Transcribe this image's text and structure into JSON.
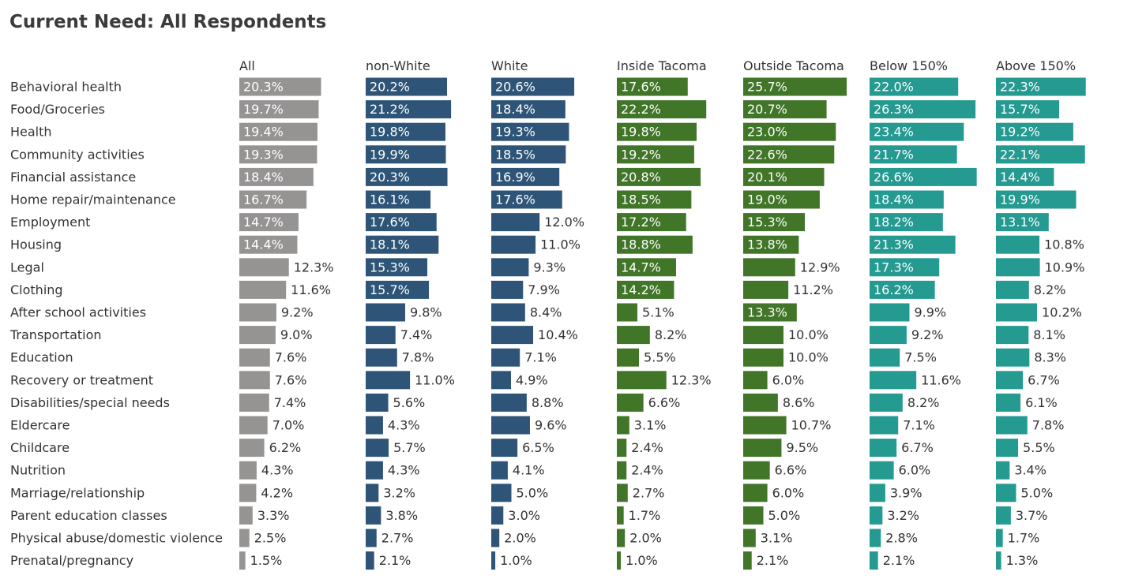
{
  "chart_data": {
    "type": "bar",
    "orientation": "horizontal",
    "title": "Current Need: All Respondents",
    "categories": [
      "Behavioral health",
      "Food/Groceries",
      "Health",
      "Community activities",
      "Financial assistance",
      "Home repair/maintenance",
      "Employment",
      "Housing",
      "Legal",
      "Clothing",
      "After school activities",
      "Transportation",
      "Education",
      "Recovery or treatment",
      "Disabilities/special needs",
      "Eldercare",
      "Childcare",
      "Nutrition",
      "Marriage/relationship",
      "Parent education classes",
      "Physical abuse/domestic violence",
      "Prenatal/pregnancy"
    ],
    "unit": "%",
    "series": [
      {
        "name": "All",
        "color": "#969393",
        "values": [
          20.3,
          19.7,
          19.4,
          19.3,
          18.4,
          16.7,
          14.7,
          14.4,
          12.3,
          11.6,
          9.2,
          9.0,
          7.6,
          7.6,
          7.4,
          7.0,
          6.2,
          4.3,
          4.2,
          3.3,
          2.5,
          1.5
        ]
      },
      {
        "name": "non-White",
        "color": "#2e5577",
        "values": [
          20.2,
          21.2,
          19.8,
          19.9,
          20.3,
          16.1,
          17.6,
          18.1,
          15.3,
          15.7,
          9.8,
          7.4,
          7.8,
          11.0,
          5.6,
          4.3,
          5.7,
          4.3,
          3.2,
          3.8,
          2.7,
          2.1
        ]
      },
      {
        "name": "White",
        "color": "#2e5577",
        "values": [
          20.6,
          18.4,
          19.3,
          18.5,
          16.9,
          17.6,
          12.0,
          11.0,
          9.3,
          7.9,
          8.4,
          10.4,
          7.1,
          4.9,
          8.8,
          9.6,
          6.5,
          4.1,
          5.0,
          3.0,
          2.0,
          1.0
        ]
      },
      {
        "name": "Inside Tacoma",
        "color": "#417528",
        "values": [
          17.6,
          22.2,
          19.8,
          19.2,
          20.8,
          18.5,
          17.2,
          18.8,
          14.7,
          14.2,
          5.1,
          8.2,
          5.5,
          12.3,
          6.6,
          3.1,
          2.4,
          2.4,
          2.7,
          1.7,
          2.0,
          1.0
        ]
      },
      {
        "name": "Outside Tacoma",
        "color": "#417528",
        "values": [
          25.7,
          20.7,
          23.0,
          22.6,
          20.1,
          19.0,
          15.3,
          13.8,
          12.9,
          11.2,
          13.3,
          10.0,
          10.0,
          6.0,
          8.6,
          10.7,
          9.5,
          6.6,
          6.0,
          5.0,
          3.1,
          2.1
        ]
      },
      {
        "name": "Below 150%",
        "color": "#259a91",
        "values": [
          22.0,
          26.3,
          23.4,
          21.7,
          26.6,
          18.4,
          18.2,
          21.3,
          17.3,
          16.2,
          9.9,
          9.2,
          7.5,
          11.6,
          8.2,
          7.1,
          6.7,
          6.0,
          3.9,
          3.2,
          2.8,
          2.1
        ]
      },
      {
        "name": "Above 150%",
        "color": "#259a91",
        "values": [
          22.3,
          15.7,
          19.2,
          22.1,
          14.4,
          19.9,
          13.1,
          10.8,
          10.9,
          8.2,
          10.2,
          8.1,
          8.3,
          6.7,
          6.1,
          7.8,
          5.5,
          3.4,
          5.0,
          3.7,
          1.7,
          1.3
        ]
      }
    ],
    "xlim": [
      0,
      26.6
    ],
    "grid": false,
    "legend": "none"
  }
}
